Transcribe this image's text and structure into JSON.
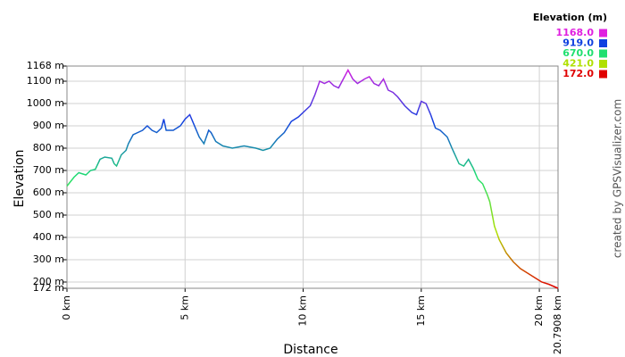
{
  "chart_data": {
    "type": "line",
    "y_label": "Elevation",
    "x_label": "Distance",
    "credit": "created by GPSVisualizer.com",
    "legend_title": "Elevation (m)",
    "legend": [
      {
        "value": 1168,
        "label": "1168.0",
        "color": "#e020e0"
      },
      {
        "value": 919,
        "label": "919.0",
        "color": "#1040e0"
      },
      {
        "value": 670,
        "label": "670.0",
        "color": "#20e070"
      },
      {
        "value": 421,
        "label": "421.0",
        "color": "#b0e000"
      },
      {
        "value": 172,
        "label": "172.0",
        "color": "#e00000"
      }
    ],
    "grid": true,
    "xlim": [
      0,
      20.7908
    ],
    "ylim": [
      172,
      1168
    ],
    "xticks": [
      {
        "value": 0,
        "label": "0 km"
      },
      {
        "value": 5,
        "label": "5 km"
      },
      {
        "value": 10,
        "label": "10 km"
      },
      {
        "value": 15,
        "label": "15 km"
      },
      {
        "value": 20,
        "label": "20 km"
      },
      {
        "value": 20.7908,
        "label": "20.7908 km"
      }
    ],
    "yticks": [
      {
        "value": 172,
        "label": "172 m"
      },
      {
        "value": 200,
        "label": "200 m"
      },
      {
        "value": 300,
        "label": "300 m"
      },
      {
        "value": 400,
        "label": "400 m"
      },
      {
        "value": 500,
        "label": "500 m"
      },
      {
        "value": 600,
        "label": "600 m"
      },
      {
        "value": 700,
        "label": "700 m"
      },
      {
        "value": 800,
        "label": "800 m"
      },
      {
        "value": 900,
        "label": "900 m"
      },
      {
        "value": 1000,
        "label": "1000 m"
      },
      {
        "value": 1100,
        "label": "1100 m"
      },
      {
        "value": 1168,
        "label": "1168 m"
      }
    ],
    "x": [
      0,
      0.3,
      0.5,
      0.8,
      1.0,
      1.2,
      1.4,
      1.6,
      1.9,
      2.0,
      2.1,
      2.3,
      2.5,
      2.6,
      2.8,
      3.0,
      3.2,
      3.4,
      3.6,
      3.8,
      4.0,
      4.1,
      4.2,
      4.5,
      4.8,
      5.0,
      5.2,
      5.4,
      5.6,
      5.8,
      6.0,
      6.1,
      6.3,
      6.6,
      7.0,
      7.5,
      8.0,
      8.3,
      8.6,
      8.9,
      9.2,
      9.5,
      9.8,
      10.0,
      10.3,
      10.5,
      10.7,
      10.9,
      11.1,
      11.3,
      11.5,
      11.7,
      11.9,
      12.1,
      12.3,
      12.6,
      12.8,
      13.0,
      13.2,
      13.4,
      13.6,
      13.8,
      14.0,
      14.3,
      14.6,
      14.8,
      15.0,
      15.2,
      15.4,
      15.6,
      15.8,
      16.1,
      16.3,
      16.6,
      16.8,
      17.0,
      17.2,
      17.4,
      17.6,
      17.8,
      17.9,
      18.1,
      18.3,
      18.6,
      18.9,
      19.2,
      19.5,
      19.8,
      20.1,
      20.4,
      20.7908
    ],
    "values": [
      630,
      670,
      690,
      680,
      700,
      705,
      750,
      760,
      755,
      730,
      720,
      770,
      790,
      820,
      860,
      870,
      880,
      900,
      880,
      870,
      890,
      930,
      880,
      880,
      900,
      930,
      950,
      900,
      850,
      820,
      880,
      870,
      830,
      810,
      800,
      810,
      800,
      790,
      800,
      840,
      870,
      920,
      940,
      960,
      990,
      1040,
      1100,
      1090,
      1100,
      1080,
      1070,
      1110,
      1150,
      1110,
      1090,
      1110,
      1120,
      1090,
      1080,
      1110,
      1060,
      1050,
      1030,
      990,
      960,
      950,
      1010,
      1000,
      950,
      890,
      880,
      850,
      800,
      730,
      720,
      750,
      710,
      660,
      640,
      590,
      560,
      450,
      390,
      330,
      290,
      260,
      240,
      220,
      200,
      190,
      172
    ]
  }
}
